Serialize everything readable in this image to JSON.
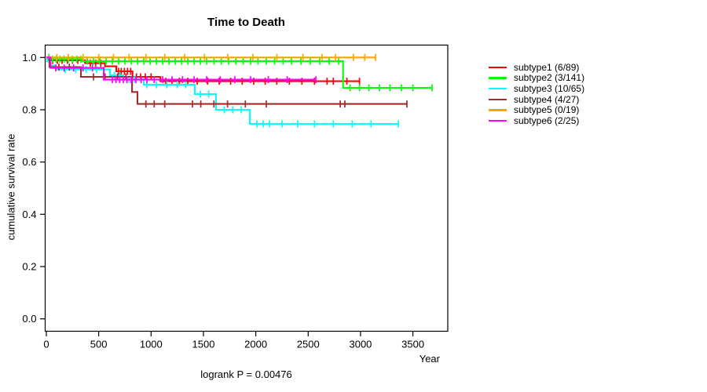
{
  "title": "Time to Death",
  "footer": "logrank P = 0.00476",
  "axes": {
    "x": {
      "label": "Year",
      "ticks": [
        0,
        500,
        1000,
        1500,
        2000,
        2500,
        3000,
        3500
      ]
    },
    "y": {
      "label": "cumulative survival rate",
      "ticks": [
        "0.0",
        "0.2",
        "0.4",
        "0.6",
        "0.8",
        "1.0"
      ]
    }
  },
  "chart_data": {
    "type": "line",
    "subtype": "kaplan-meier-step",
    "title": "Time to Death",
    "xlabel": "Year",
    "ylabel": "cumulative survival rate",
    "xlim": [
      0,
      3830
    ],
    "ylim": [
      0,
      1.0
    ],
    "grid": false,
    "legend_position": "right-outside",
    "annotation": "logrank P = 0.00476",
    "series": [
      {
        "name": "subtype1",
        "label": "subtype1 (6/89)",
        "events": "6/89",
        "color": "#ff0000",
        "steps": [
          [
            0,
            1.0
          ],
          [
            15,
            0.989
          ],
          [
            370,
            0.978
          ],
          [
            560,
            0.966
          ],
          [
            668,
            0.947
          ],
          [
            823,
            0.926
          ],
          [
            1088,
            0.909
          ]
        ],
        "end_year": 2990,
        "censors": [
          60,
          105,
          150,
          200,
          250,
          300,
          420,
          470,
          520,
          690,
          715,
          745,
          775,
          805,
          860,
          900,
          945,
          1000,
          1140,
          1200,
          1270,
          1350,
          1440,
          1540,
          1650,
          1760,
          1870,
          1980,
          2090,
          2200,
          2320,
          2440,
          2560,
          2680,
          2740,
          2870,
          2990
        ]
      },
      {
        "name": "subtype2",
        "label": "subtype2 (3/141)",
        "events": "3/141",
        "color": "#00ff00",
        "steps": [
          [
            0,
            1.0
          ],
          [
            45,
            0.993
          ],
          [
            345,
            0.986
          ],
          [
            2833,
            0.884
          ]
        ],
        "end_year": 3683,
        "censors": [
          25,
          60,
          95,
          130,
          170,
          210,
          250,
          290,
          330,
          390,
          450,
          510,
          570,
          630,
          690,
          750,
          810,
          870,
          930,
          990,
          1050,
          1110,
          1170,
          1230,
          1290,
          1350,
          1410,
          1470,
          1530,
          1600,
          1670,
          1740,
          1810,
          1880,
          1950,
          2020,
          2100,
          2180,
          2260,
          2340,
          2430,
          2520,
          2610,
          2700,
          2790,
          2900,
          2990,
          3080,
          3180,
          3280,
          3390,
          3500,
          3683
        ]
      },
      {
        "name": "subtype3",
        "label": "subtype3 (10/65)",
        "events": "10/65",
        "color": "#00ffff",
        "steps": [
          [
            0,
            1.0
          ],
          [
            8,
            0.985
          ],
          [
            30,
            0.969
          ],
          [
            90,
            0.954
          ],
          [
            608,
            0.932
          ],
          [
            735,
            0.917
          ],
          [
            930,
            0.896
          ],
          [
            1418,
            0.86
          ],
          [
            1620,
            0.8
          ],
          [
            1943,
            0.746
          ]
        ],
        "end_year": 3361,
        "censors": [
          180,
          280,
          380,
          480,
          650,
          700,
          790,
          840,
          960,
          1050,
          1150,
          1250,
          1330,
          1470,
          1550,
          1700,
          1780,
          1860,
          2010,
          2070,
          2130,
          2250,
          2400,
          2560,
          2740,
          2920,
          3100,
          3361
        ]
      },
      {
        "name": "subtype4",
        "label": "subtype4 (4/27)",
        "events": "4/27",
        "color": "#a52a2a",
        "steps": [
          [
            0,
            1.0
          ],
          [
            30,
            0.963
          ],
          [
            330,
            0.926
          ],
          [
            818,
            0.868
          ],
          [
            870,
            0.822
          ]
        ],
        "end_year": 3443,
        "censors": [
          120,
          220,
          450,
          560,
          680,
          760,
          950,
          1030,
          1130,
          1395,
          1475,
          1600,
          1730,
          1900,
          2100,
          2806,
          2850,
          3443
        ]
      },
      {
        "name": "subtype5",
        "label": "subtype5 (0/19)",
        "events": "0/19",
        "color": "#ffa500",
        "steps": [
          [
            0,
            1.0
          ]
        ],
        "end_year": 3143,
        "censors": [
          100,
          210,
          350,
          500,
          640,
          790,
          950,
          1130,
          1320,
          1510,
          1733,
          1973,
          2200,
          2450,
          2633,
          2761,
          2933,
          3040,
          3143
        ]
      },
      {
        "name": "subtype6",
        "label": "subtype6 (2/25)",
        "events": "2/25",
        "color": "#ff00ff",
        "steps": [
          [
            0,
            1.0
          ],
          [
            40,
            0.96
          ],
          [
            548,
            0.915
          ]
        ],
        "end_year": 2573,
        "censors": [
          90,
          170,
          260,
          350,
          440,
          630,
          665,
          700,
          735,
          770,
          810,
          855,
          905,
          960,
          1030,
          1110,
          1200,
          1300,
          1410,
          1530,
          1660,
          1800,
          1950,
          2120,
          2300,
          2573
        ]
      }
    ]
  }
}
